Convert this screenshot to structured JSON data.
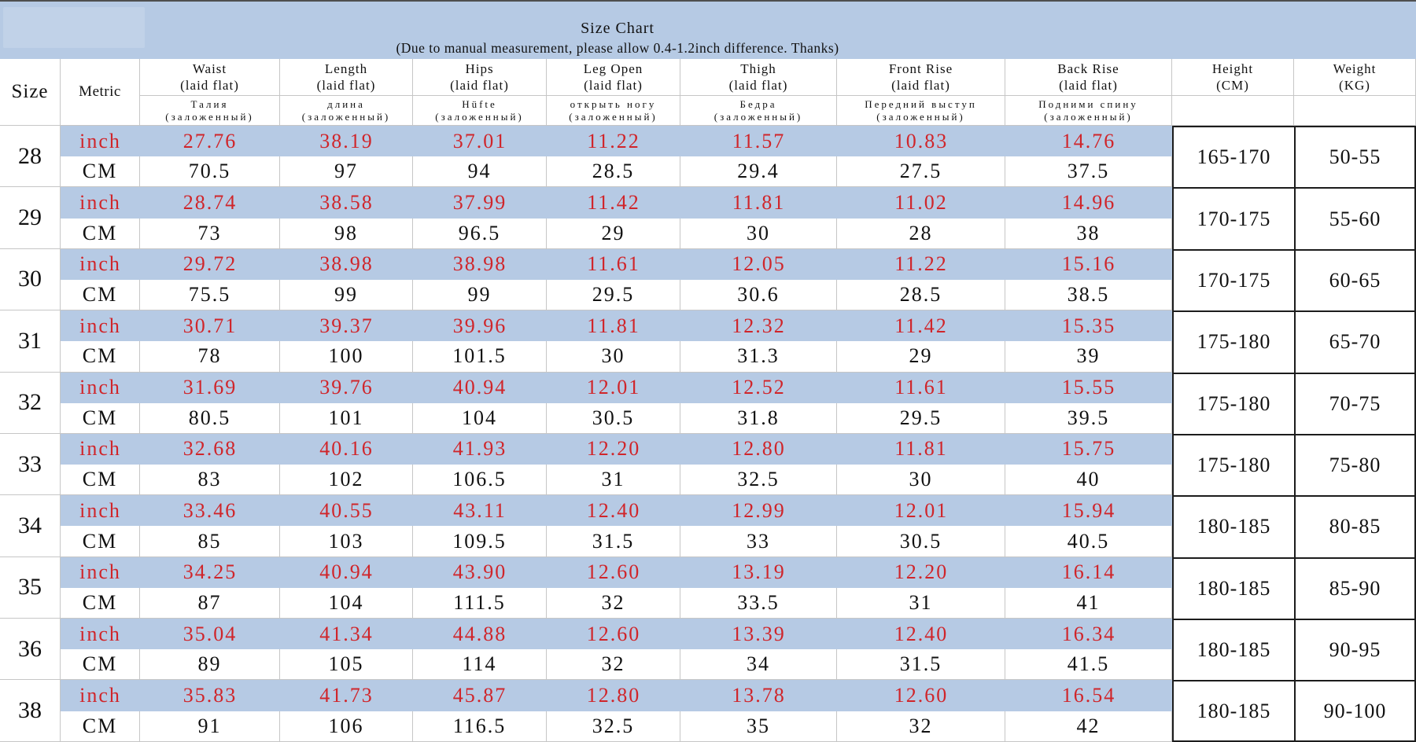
{
  "chart_data": {
    "type": "table",
    "title": "Size Chart",
    "subtitle": "(Due to manual measurement, please allow 0.4-1.2inch difference. Thanks)",
    "metric_labels": [
      "inch",
      "CM"
    ],
    "columns": [
      {
        "key": "size",
        "label": "Size"
      },
      {
        "key": "metric",
        "label": "Metric"
      },
      {
        "key": "waist",
        "label": "Waist",
        "sub": "(laid flat)",
        "ru": [
          "Талия",
          "(заложенный)"
        ]
      },
      {
        "key": "length",
        "label": "Length",
        "sub": "(laid flat)",
        "ru": [
          "длина",
          "(заложенный)"
        ]
      },
      {
        "key": "hips",
        "label": "Hips",
        "sub": "(laid flat)",
        "ru": [
          "Hüfte",
          "(заложенный)"
        ]
      },
      {
        "key": "leg-open",
        "label": "Leg Open",
        "sub": "(laid flat)",
        "ru": [
          "открыть ногу",
          "(заложенный)"
        ]
      },
      {
        "key": "thigh",
        "label": "Thigh",
        "sub": "(laid flat)",
        "ru": [
          "Бедра",
          "(заложенный)"
        ]
      },
      {
        "key": "front-rise",
        "label": "Front Rise",
        "sub": "(laid flat)",
        "ru": [
          "Передний выступ",
          "(заложенный)"
        ]
      },
      {
        "key": "back-rise",
        "label": "Back Rise",
        "sub": "(laid flat)",
        "ru": [
          "Подними спину",
          "(заложенный)"
        ]
      },
      {
        "key": "height",
        "label": "Height",
        "sub": "(CM)"
      },
      {
        "key": "weight",
        "label": "Weight",
        "sub": "(KG)"
      }
    ],
    "rows": [
      {
        "size": "28",
        "inch": [
          "27.76",
          "38.19",
          "37.01",
          "11.22",
          "11.57",
          "10.83",
          "14.76"
        ],
        "cm": [
          "70.5",
          "97",
          "94",
          "28.5",
          "29.4",
          "27.5",
          "37.5"
        ],
        "height": "165-170",
        "weight": "50-55"
      },
      {
        "size": "29",
        "inch": [
          "28.74",
          "38.58",
          "37.99",
          "11.42",
          "11.81",
          "11.02",
          "14.96"
        ],
        "cm": [
          "73",
          "98",
          "96.5",
          "29",
          "30",
          "28",
          "38"
        ],
        "height": "170-175",
        "weight": "55-60"
      },
      {
        "size": "30",
        "inch": [
          "29.72",
          "38.98",
          "38.98",
          "11.61",
          "12.05",
          "11.22",
          "15.16"
        ],
        "cm": [
          "75.5",
          "99",
          "99",
          "29.5",
          "30.6",
          "28.5",
          "38.5"
        ],
        "height": "170-175",
        "weight": "60-65"
      },
      {
        "size": "31",
        "inch": [
          "30.71",
          "39.37",
          "39.96",
          "11.81",
          "12.32",
          "11.42",
          "15.35"
        ],
        "cm": [
          "78",
          "100",
          "101.5",
          "30",
          "31.3",
          "29",
          "39"
        ],
        "height": "175-180",
        "weight": "65-70"
      },
      {
        "size": "32",
        "inch": [
          "31.69",
          "39.76",
          "40.94",
          "12.01",
          "12.52",
          "11.61",
          "15.55"
        ],
        "cm": [
          "80.5",
          "101",
          "104",
          "30.5",
          "31.8",
          "29.5",
          "39.5"
        ],
        "height": "175-180",
        "weight": "70-75"
      },
      {
        "size": "33",
        "inch": [
          "32.68",
          "40.16",
          "41.93",
          "12.20",
          "12.80",
          "11.81",
          "15.75"
        ],
        "cm": [
          "83",
          "102",
          "106.5",
          "31",
          "32.5",
          "30",
          "40"
        ],
        "height": "175-180",
        "weight": "75-80"
      },
      {
        "size": "34",
        "inch": [
          "33.46",
          "40.55",
          "43.11",
          "12.40",
          "12.99",
          "12.01",
          "15.94"
        ],
        "cm": [
          "85",
          "103",
          "109.5",
          "31.5",
          "33",
          "30.5",
          "40.5"
        ],
        "height": "180-185",
        "weight": "80-85"
      },
      {
        "size": "35",
        "inch": [
          "34.25",
          "40.94",
          "43.90",
          "12.60",
          "13.19",
          "12.20",
          "16.14"
        ],
        "cm": [
          "87",
          "104",
          "111.5",
          "32",
          "33.5",
          "31",
          "41"
        ],
        "height": "180-185",
        "weight": "85-90"
      },
      {
        "size": "36",
        "inch": [
          "35.04",
          "41.34",
          "44.88",
          "12.60",
          "13.39",
          "12.40",
          "16.34"
        ],
        "cm": [
          "89",
          "105",
          "114",
          "32",
          "34",
          "31.5",
          "41.5"
        ],
        "height": "180-185",
        "weight": "90-95"
      },
      {
        "size": "38",
        "inch": [
          "35.83",
          "41.73",
          "45.87",
          "12.80",
          "13.78",
          "12.60",
          "16.54"
        ],
        "cm": [
          "91",
          "106",
          "116.5",
          "32.5",
          "35",
          "32",
          "42"
        ],
        "height": "180-185",
        "weight": "90-100"
      }
    ],
    "colors": {
      "band_blue": "#b6cae4",
      "value_red": "#d0252a",
      "grid_gray": "#c6c6c6",
      "box_black": "#1c1c1c"
    }
  }
}
